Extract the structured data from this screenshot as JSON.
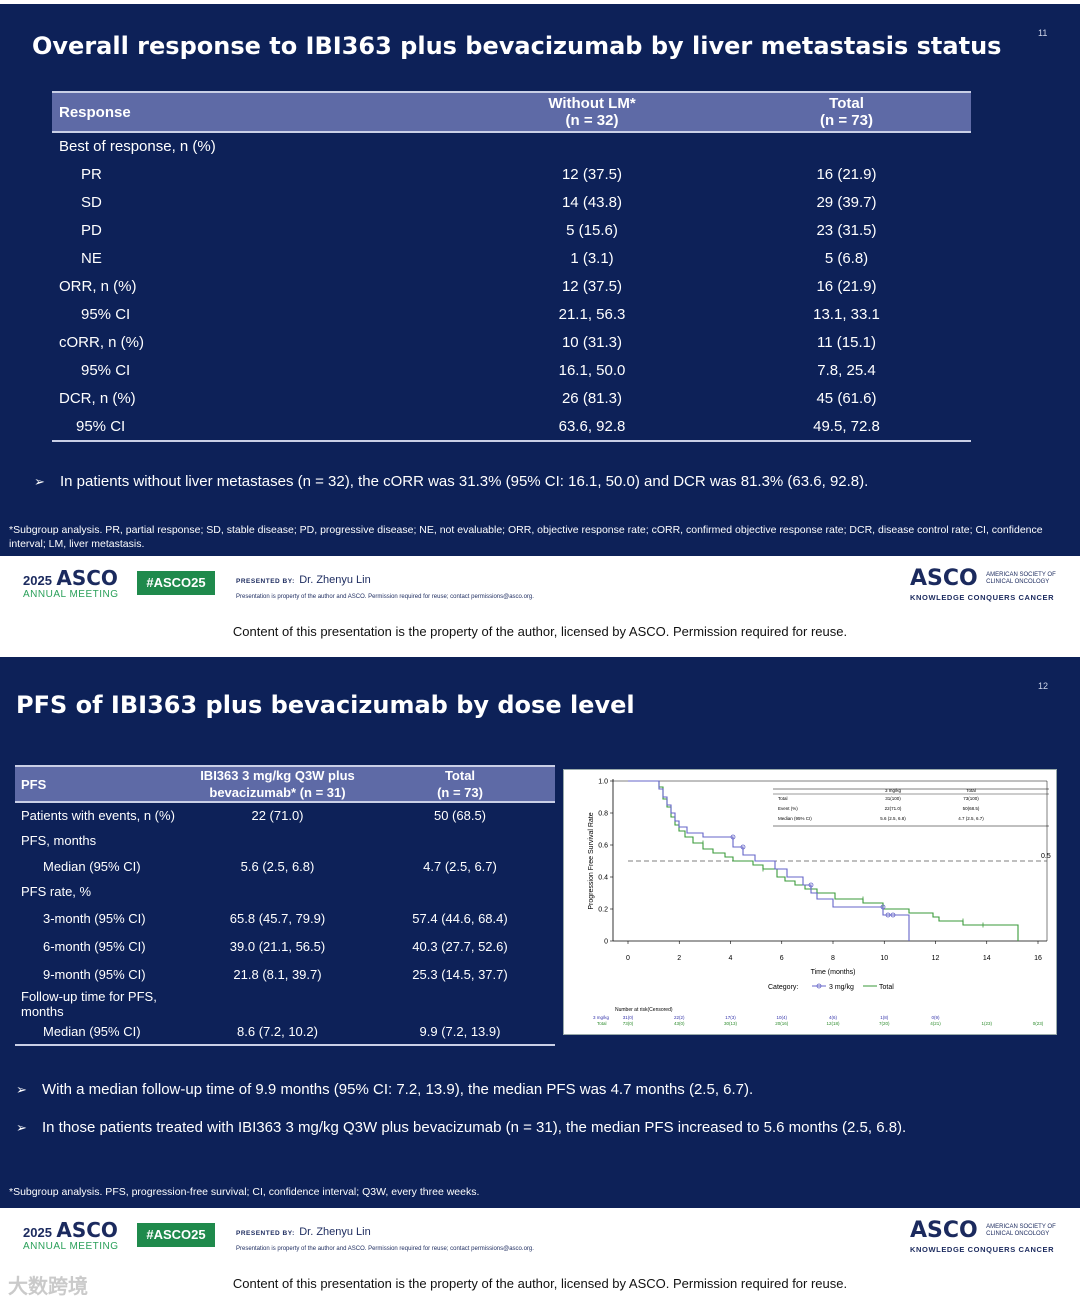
{
  "slide1": {
    "number": "11",
    "title": "Overall response to IBI363 plus bevacizumab by liver metastasis status",
    "table": {
      "header": {
        "response": "Response",
        "without_lm_line1": "Without LM*",
        "without_lm_line2": "(n = 32)",
        "total_line1": "Total",
        "total_line2": "(n = 73)"
      },
      "rows": [
        {
          "label": "Best of response, n (%)",
          "without_lm": "",
          "total": ""
        },
        {
          "label": "PR",
          "without_lm": "12 (37.5)",
          "total": "16 (21.9)"
        },
        {
          "label": "SD",
          "without_lm": "14 (43.8)",
          "total": "29 (39.7)"
        },
        {
          "label": "PD",
          "without_lm": "5 (15.6)",
          "total": "23 (31.5)"
        },
        {
          "label": "NE",
          "without_lm": "1 (3.1)",
          "total": "5 (6.8)"
        },
        {
          "label": "ORR, n (%)",
          "without_lm": "12 (37.5)",
          "total": "16 (21.9)"
        },
        {
          "label": "95% CI",
          "without_lm": "21.1, 56.3",
          "total": "13.1, 33.1"
        },
        {
          "label": "cORR, n (%)",
          "without_lm": "10 (31.3)",
          "total": "11 (15.1)"
        },
        {
          "label": "95% CI",
          "without_lm": "16.1, 50.0",
          "total": "7.8, 25.4"
        },
        {
          "label": "DCR, n (%)",
          "without_lm": "26 (81.3)",
          "total": "45 (61.6)"
        },
        {
          "label": "95% CI",
          "without_lm": "63.6, 92.8",
          "total": "49.5, 72.8"
        }
      ]
    },
    "bullet": "In patients without liver metastases (n = 32), the cORR was 31.3% (95% CI: 16.1, 50.0) and DCR was 81.3% (63.6, 92.8).",
    "footnote": "*Subgroup analysis. PR, partial response; SD, stable disease; PD, progressive disease; NE, not evaluable; ORR, objective response rate; cORR, confirmed objective response rate; DCR, disease control rate; CI, confidence interval; LM, liver metastasis."
  },
  "slide2": {
    "number": "12",
    "title": "PFS of IBI363 plus bevacizumab by dose level",
    "table": {
      "header": {
        "pfs": "PFS",
        "dose_line1": "IBI363 3 mg/kg Q3W plus",
        "dose_line2": "bevacizumab* (n = 31)",
        "total_line1": "Total",
        "total_line2": "(n = 73)"
      },
      "rows": [
        {
          "label": "Patients with events, n (%)",
          "dose": "22 (71.0)",
          "total": "50 (68.5)"
        },
        {
          "label": "PFS, months",
          "dose": "",
          "total": ""
        },
        {
          "label": "Median (95% CI)",
          "dose": "5.6 (2.5, 6.8)",
          "total": "4.7 (2.5, 6.7)"
        },
        {
          "label": "PFS rate, %",
          "dose": "",
          "total": ""
        },
        {
          "label": "3-month (95% CI)",
          "dose": "65.8 (45.7, 79.9)",
          "total": "57.4 (44.6, 68.4)"
        },
        {
          "label": "6-month (95% CI)",
          "dose": "39.0 (21.1, 56.5)",
          "total": "40.3 (27.7, 52.6)"
        },
        {
          "label": "9-month (95% CI)",
          "dose": "21.8 (8.1, 39.7)",
          "total": "25.3 (14.5, 37.7)"
        },
        {
          "label": "Follow-up time for PFS, months",
          "dose": "",
          "total": ""
        },
        {
          "label": "Median  (95% CI)",
          "dose": "8.6 (7.2, 10.2)",
          "total": "9.9 (7.2, 13.9)"
        }
      ]
    },
    "km_plot": {
      "ylabel": "Progression Free Survival Rate",
      "xlabel": "Time (months)",
      "x_ticks": [
        "0",
        "2",
        "4",
        "6",
        "8",
        "10",
        "12",
        "14",
        "16"
      ],
      "y_ticks": [
        "0",
        "0.2",
        "0.4",
        "0.6",
        "0.8",
        "1.0"
      ],
      "ref_label": "0.5",
      "legend_category": "Category:",
      "legend_3mg": "3 mg/kg",
      "legend_total": "Total",
      "inset_col1": "3 mg/kg",
      "inset_col2": "Total",
      "inset_rows": [
        {
          "label": "Total",
          "v1": "31(100)",
          "v2": "73(100)"
        },
        {
          "label": "Event (%)",
          "v1": "22(71.0)",
          "v2": "50(68.5)"
        },
        {
          "label": "Median (95% CI)",
          "v1": "5.6 (2.5, 6.8)",
          "v2": "4.7 (2.5, 6.7)"
        }
      ],
      "risk_title": "Number at risk(Censored)",
      "risk_3mg_label": "3 mg/kg",
      "risk_total_label": "Total",
      "risk_3mg": [
        "31(0)",
        "22(2)",
        "17(3)",
        "10(4)",
        "4(6)",
        "1(8)",
        "0(9)"
      ],
      "risk_total": [
        "73(0)",
        "43(0)",
        "30(13)",
        "20(16)",
        "12(18)",
        "7(20)",
        "4(21)",
        "1(23)",
        "0(23)"
      ]
    },
    "bullets": [
      "With a median follow-up time of 9.9 months (95% CI: 7.2, 13.9), the median PFS was 4.7 months (2.5, 6.7).",
      "In those patients treated with IBI363 3 mg/kg Q3W plus bevacizumab (n = 31), the median PFS increased to 5.6 months (2.5, 6.8)."
    ],
    "footnote": "*Subgroup analysis. PFS, progression-free survival; CI, confidence interval; Q3W, every three weeks."
  },
  "footer": {
    "year": "2025",
    "asco": "ASCO",
    "annual_meeting": "ANNUAL MEETING",
    "hashtag": "#ASCO25",
    "presented_by": "PRESENTED BY:",
    "presenter": "Dr. Zhenyu Lin",
    "property_note": "Presentation is property of the author and ASCO. Permission required for reuse; contact permissions@asco.org.",
    "asco_right": "ASCO",
    "org_line1": "AMERICAN SOCIETY OF",
    "org_line2": "CLINICAL ONCOLOGY",
    "tagline": "KNOWLEDGE CONQUERS CANCER",
    "copyright": "Content of this presentation is the property of the author, licensed by ASCO. Permission required for reuse."
  },
  "watermark": "大数跨境"
}
